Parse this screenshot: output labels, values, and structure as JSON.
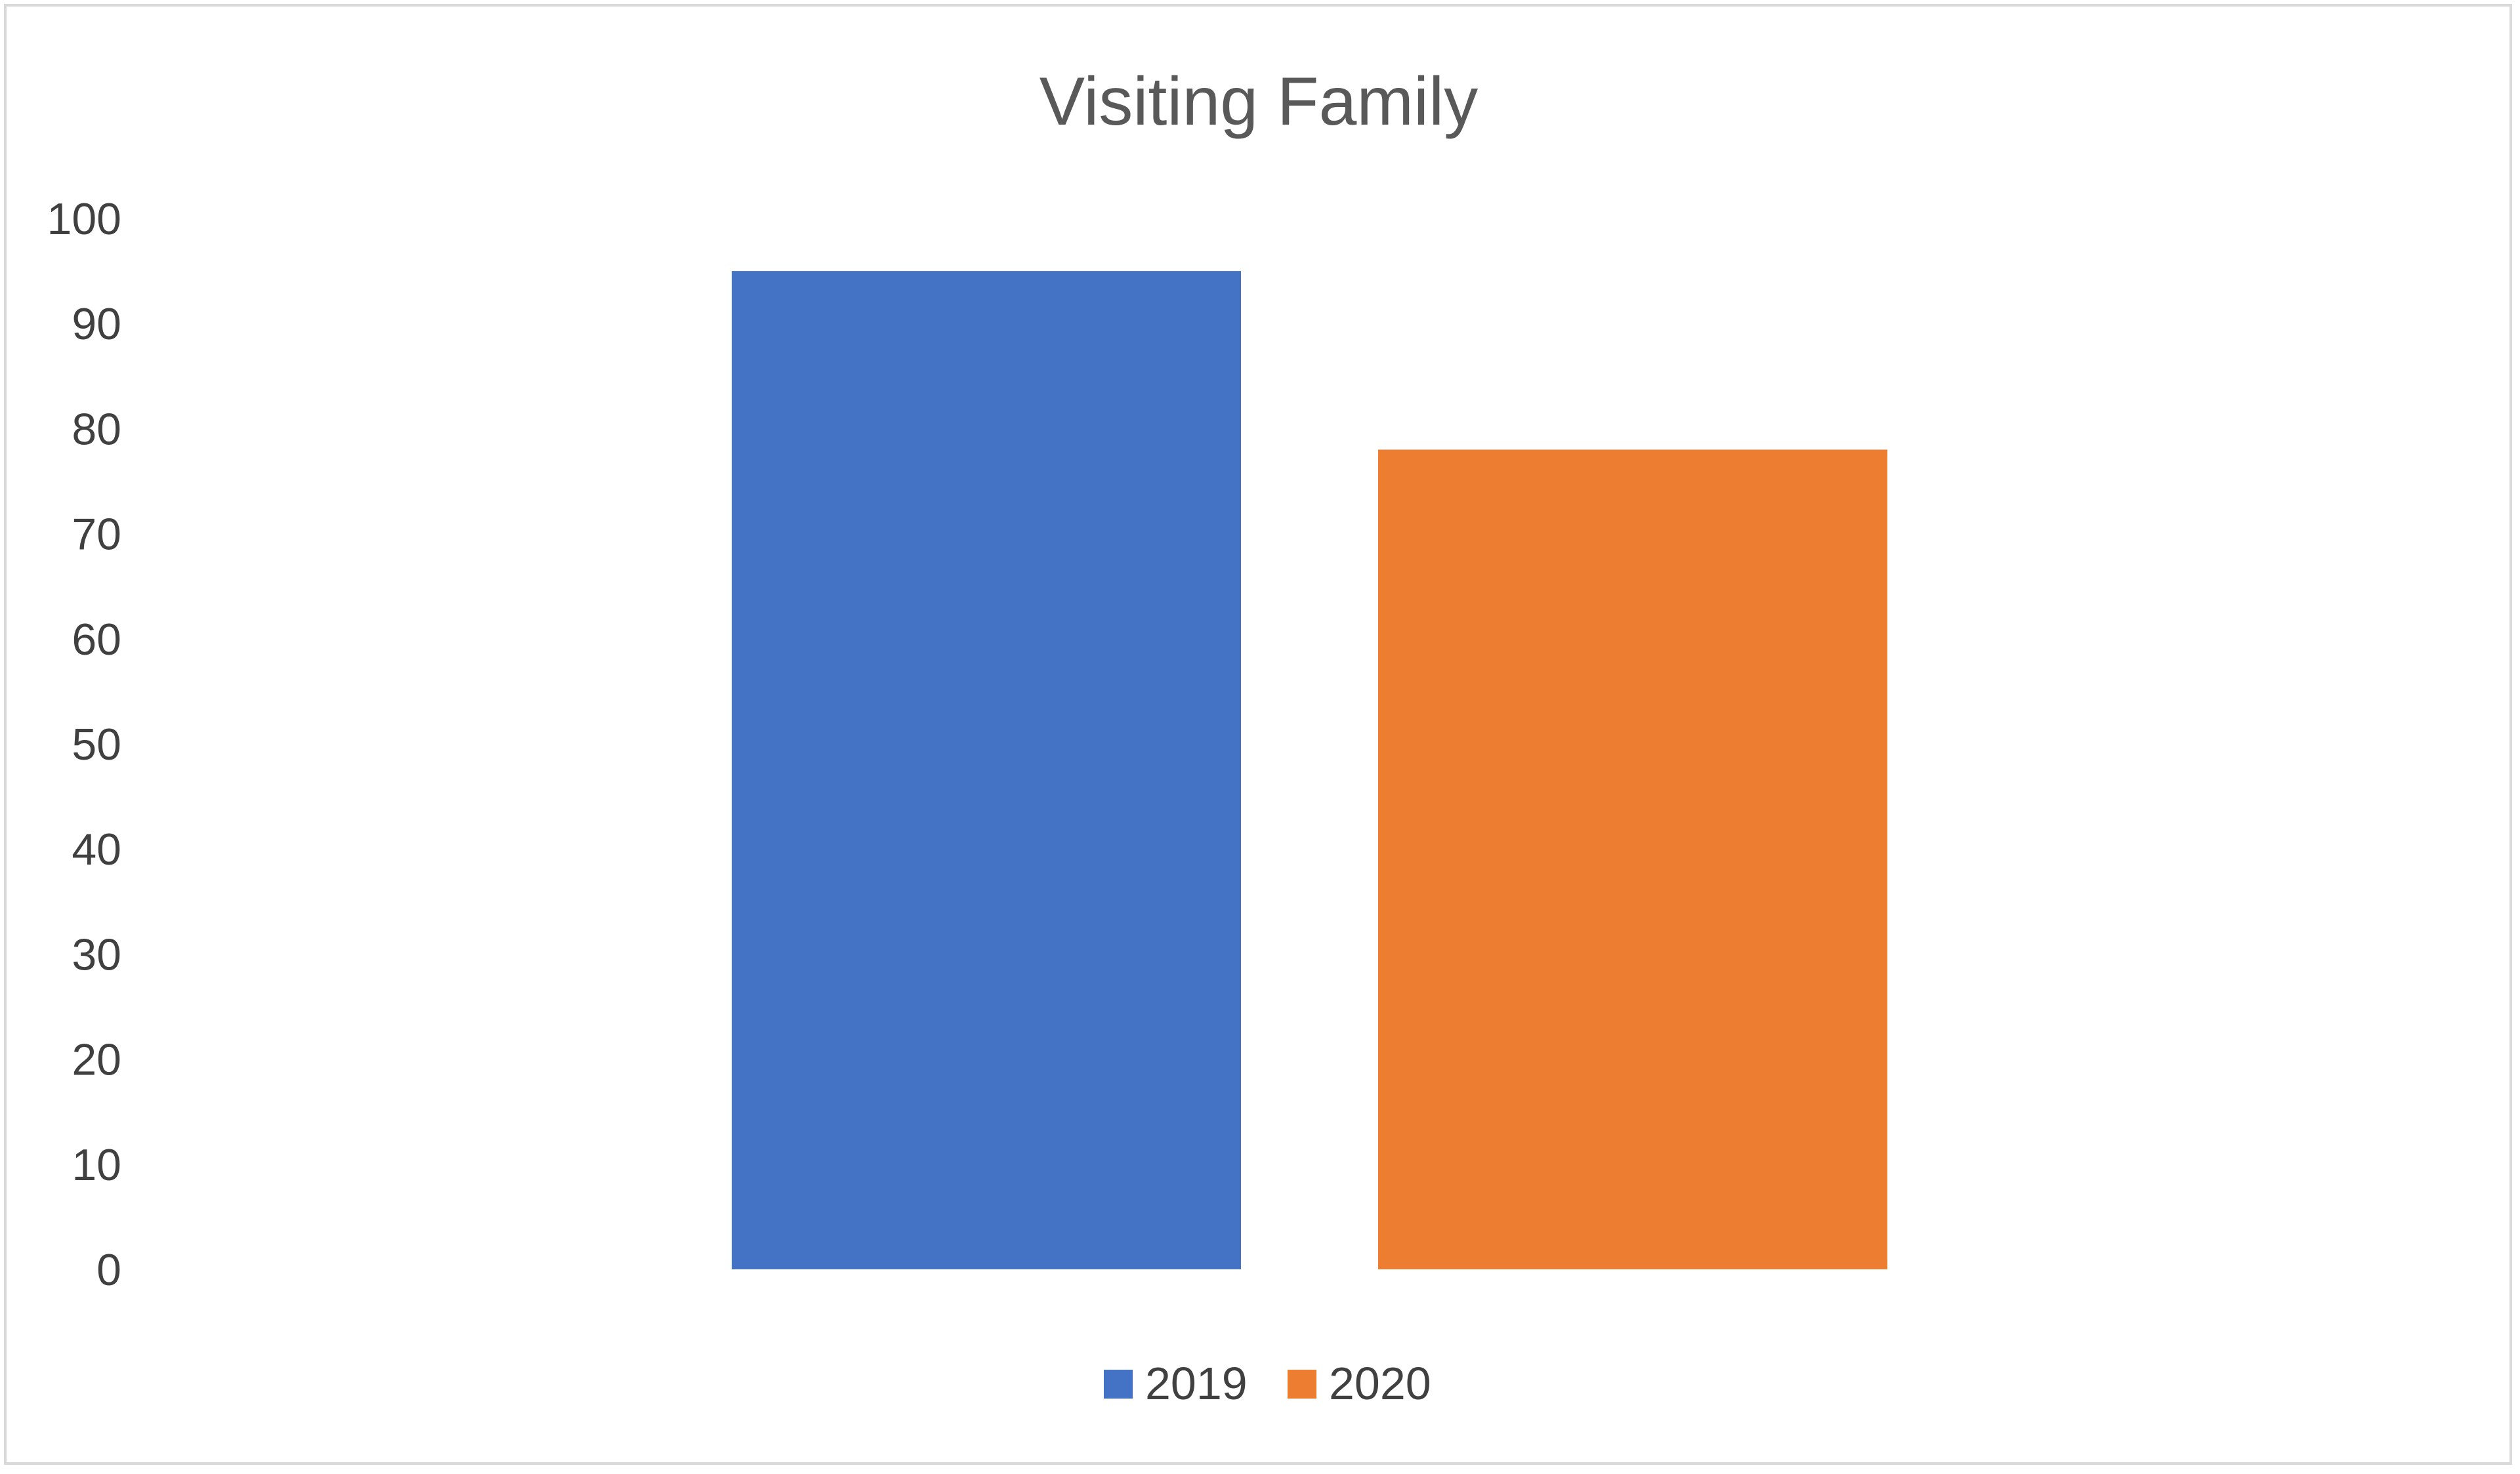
{
  "chart_data": {
    "type": "bar",
    "title": "Visiting Family",
    "categories": [
      ""
    ],
    "series": [
      {
        "name": "2019",
        "values": [
          95
        ],
        "color": "#4472C4"
      },
      {
        "name": "2020",
        "values": [
          78
        ],
        "color": "#ED7D31"
      }
    ],
    "y_ticks": [
      "0",
      "10",
      "20",
      "30",
      "40",
      "50",
      "60",
      "70",
      "80",
      "90",
      "100"
    ],
    "ylim": [
      0,
      100
    ],
    "grid": false,
    "legend": "bottom-center"
  }
}
